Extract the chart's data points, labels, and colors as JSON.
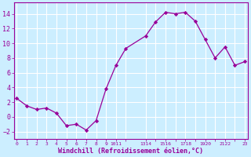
{
  "x": [
    0,
    1,
    2,
    3,
    4,
    5,
    6,
    7,
    8,
    9,
    10,
    11,
    13,
    14,
    15,
    16,
    17,
    18,
    19,
    20,
    21,
    22,
    23
  ],
  "y": [
    2.5,
    1.5,
    1.0,
    1.2,
    0.5,
    -1.2,
    -1.0,
    -1.8,
    -0.5,
    3.8,
    7.0,
    9.3,
    11.0,
    12.9,
    14.2,
    14.0,
    14.2,
    13.0,
    10.5,
    8.0,
    9.5,
    7.0,
    7.5
  ],
  "ylim": [
    -3,
    15.5
  ],
  "yticks": [
    -2,
    0,
    2,
    4,
    6,
    8,
    10,
    12,
    14
  ],
  "xlabel": "Windchill (Refroidissement éolien,°C)",
  "line_color": "#990099",
  "marker_color": "#990099",
  "bg_color": "#cceeff",
  "grid_color": "#ffffff",
  "xlabel_color": "#990099",
  "tick_color": "#990099",
  "xlim": [
    -0.3,
    23.3
  ]
}
